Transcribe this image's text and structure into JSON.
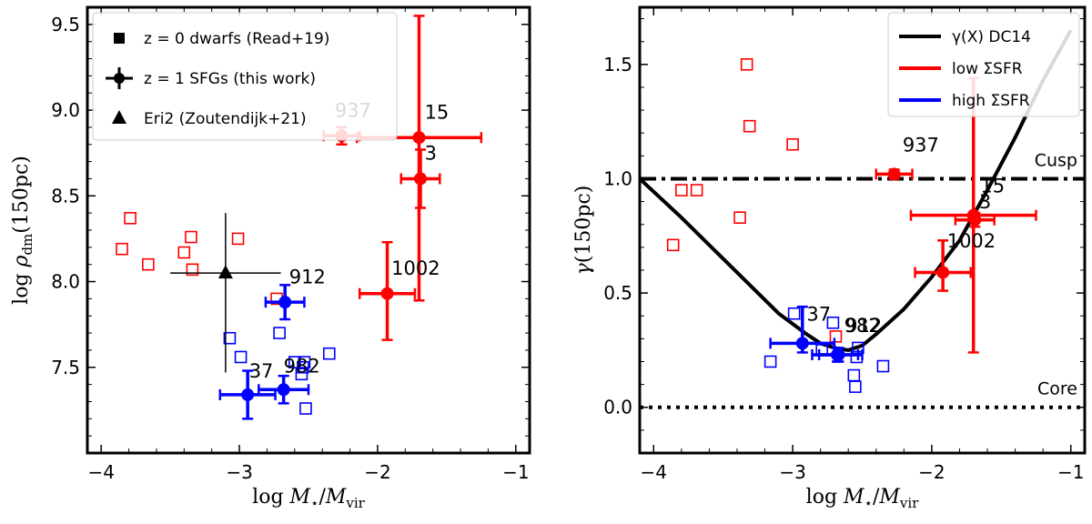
{
  "colors": {
    "red": "#ff0000",
    "blue": "#0000ff",
    "black": "#000000"
  },
  "chart_data": [
    {
      "type": "scatter",
      "title": "",
      "xlabel": "log M⋆/Mvir",
      "ylabel": "log ρdm(150pc)",
      "xlim": [
        -4.1,
        -0.9
      ],
      "ylim": [
        7.0,
        9.6
      ],
      "xticks": [
        -4,
        -3,
        -2,
        -1
      ],
      "xtick_labels": [
        "−4",
        "−3",
        "−2",
        "−1"
      ],
      "yticks": [
        7.5,
        8.0,
        8.5,
        9.0,
        9.5
      ],
      "ytick_labels": [
        "7.5",
        "8.0",
        "8.5",
        "9.0",
        "9.5"
      ],
      "legend": {
        "location": "upper-left",
        "entries": [
          {
            "marker": "square",
            "text": "z = 0 dwarfs (Read+19)"
          },
          {
            "marker": "errorbar",
            "text": "z = 1 SFGs (this work)"
          },
          {
            "marker": "triangle",
            "text": "Eri2 (Zoutendijk+21)"
          }
        ]
      },
      "dwarfs_red": [
        {
          "x": -3.85,
          "y": 8.19
        },
        {
          "x": -3.79,
          "y": 8.37
        },
        {
          "x": -3.66,
          "y": 8.1
        },
        {
          "x": -3.4,
          "y": 8.17
        },
        {
          "x": -3.35,
          "y": 8.26
        },
        {
          "x": -3.34,
          "y": 8.07
        },
        {
          "x": -3.01,
          "y": 8.25
        },
        {
          "x": -2.73,
          "y": 7.9
        }
      ],
      "dwarfs_blue": [
        {
          "x": -3.07,
          "y": 7.67
        },
        {
          "x": -2.99,
          "y": 7.56
        },
        {
          "x": -2.71,
          "y": 7.7
        },
        {
          "x": -2.6,
          "y": 7.53
        },
        {
          "x": -2.55,
          "y": 7.46
        },
        {
          "x": -2.54,
          "y": 7.5
        },
        {
          "x": -2.53,
          "y": 7.53
        },
        {
          "x": -2.52,
          "y": 7.26
        },
        {
          "x": -2.35,
          "y": 7.58
        }
      ],
      "sfgs": [
        {
          "id": "937",
          "color": "red",
          "x": -2.26,
          "y": 8.85,
          "xerr": [
            0.13,
            0.13
          ],
          "yerr": [
            0.05,
            0.05
          ],
          "label": "937",
          "label_dx": -0.05,
          "label_dy": 0.11,
          "label_gray": true
        },
        {
          "id": "15",
          "color": "red",
          "x": -1.7,
          "y": 8.84,
          "xerr": [
            0.45,
            0.45
          ],
          "yerr": [
            0.95,
            0.71
          ],
          "label": "15",
          "label_dx": 0.04,
          "label_dy": 0.11
        },
        {
          "id": "3",
          "color": "red",
          "x": -1.69,
          "y": 8.6,
          "xerr": [
            0.14,
            0.14
          ],
          "yerr": [
            0.17,
            0.17
          ],
          "label": "3",
          "label_dx": 0.03,
          "label_dy": 0.11
        },
        {
          "id": "1002",
          "color": "red",
          "x": -1.93,
          "y": 7.93,
          "xerr": [
            0.2,
            0.2
          ],
          "yerr": [
            0.27,
            0.3
          ],
          "label": "1002",
          "label_dx": 0.03,
          "label_dy": 0.11
        },
        {
          "id": "912",
          "color": "blue",
          "x": -2.67,
          "y": 7.88,
          "xerr": [
            0.14,
            0.14
          ],
          "yerr": [
            0.1,
            0.1
          ],
          "label": "912",
          "label_dx": 0.03,
          "label_dy": 0.11
        },
        {
          "id": "982",
          "color": "blue",
          "x": -2.68,
          "y": 7.37,
          "xerr": [
            0.18,
            0.18
          ],
          "yerr": [
            0.08,
            0.08
          ],
          "label": "982",
          "label_dx": 0.0,
          "label_dy": 0.1
        },
        {
          "id": "37",
          "color": "blue",
          "x": -2.94,
          "y": 7.34,
          "xerr": [
            0.2,
            0.2
          ],
          "yerr": [
            0.14,
            0.14
          ],
          "label": "37",
          "label_dx": 0.01,
          "label_dy": 0.1
        }
      ],
      "eri2": {
        "x": -3.1,
        "y": 8.05,
        "xerr": [
          0.4,
          0.4
        ],
        "yerr": [
          0.58,
          0.35
        ]
      }
    },
    {
      "type": "scatter",
      "title": "",
      "xlabel": "log M⋆/Mvir",
      "ylabel": "γ(150pc)",
      "xlim": [
        -4.1,
        -0.9
      ],
      "ylim": [
        -0.2,
        1.75
      ],
      "xticks": [
        -4,
        -3,
        -2,
        -1
      ],
      "xtick_labels": [
        "−4",
        "−3",
        "−2",
        "−1"
      ],
      "yticks": [
        0.0,
        0.5,
        1.0,
        1.5
      ],
      "ytick_labels": [
        "0.0",
        "0.5",
        "1.0",
        "1.5"
      ],
      "legend": {
        "location": "upper-right",
        "entries": [
          {
            "color": "black",
            "text": "γ(X) DC14"
          },
          {
            "color": "red",
            "text": "low ΣSFR"
          },
          {
            "color": "blue",
            "text": "high ΣSFR"
          }
        ]
      },
      "reference_lines": [
        {
          "label": "Cusp",
          "y": 1.0,
          "style": "dashdot"
        },
        {
          "label": "Core",
          "y": 0.0,
          "style": "dotted"
        }
      ],
      "dc14_curve": {
        "x": [
          -4.1,
          -3.8,
          -3.5,
          -3.3,
          -3.1,
          -2.9,
          -2.8,
          -2.7,
          -2.6,
          -2.5,
          -2.4,
          -2.2,
          -2.0,
          -1.8,
          -1.6,
          -1.4,
          -1.2,
          -1.0
        ],
        "y": [
          1.0,
          0.83,
          0.65,
          0.53,
          0.41,
          0.32,
          0.28,
          0.26,
          0.25,
          0.27,
          0.32,
          0.43,
          0.57,
          0.73,
          0.95,
          1.18,
          1.43,
          1.65
        ]
      },
      "dwarfs_red": [
        {
          "x": -3.86,
          "y": 0.71
        },
        {
          "x": -3.8,
          "y": 0.95
        },
        {
          "x": -3.69,
          "y": 0.95
        },
        {
          "x": -3.38,
          "y": 0.83
        },
        {
          "x": -3.33,
          "y": 1.5
        },
        {
          "x": -3.31,
          "y": 1.23
        },
        {
          "x": -3.0,
          "y": 1.15
        },
        {
          "x": -2.69,
          "y": 0.31
        }
      ],
      "dwarfs_blue": [
        {
          "x": -3.16,
          "y": 0.2
        },
        {
          "x": -2.99,
          "y": 0.41
        },
        {
          "x": -2.71,
          "y": 0.37
        },
        {
          "x": -2.56,
          "y": 0.14
        },
        {
          "x": -2.55,
          "y": 0.09
        },
        {
          "x": -2.54,
          "y": 0.22
        },
        {
          "x": -2.53,
          "y": 0.26
        },
        {
          "x": -2.35,
          "y": 0.18
        },
        {
          "x": -2.79,
          "y": 0.25
        }
      ],
      "sfgs": [
        {
          "id": "937",
          "color": "red",
          "x": -2.27,
          "y": 1.02,
          "xerr": [
            0.13,
            0.13
          ],
          "yerr": [
            0.02,
            0.02
          ],
          "label": "937",
          "label_dx": 0.06,
          "label_dy": 0.1
        },
        {
          "id": "15",
          "color": "red",
          "x": -1.7,
          "y": 0.84,
          "xerr": [
            0.45,
            0.45
          ],
          "yerr": [
            0.6,
            0.6
          ],
          "label": "15",
          "label_dx": 0.05,
          "label_dy": 0.1
        },
        {
          "id": "3",
          "color": "red",
          "x": -1.69,
          "y": 0.82,
          "xerr": [
            0.14,
            0.14
          ],
          "yerr": [
            0.03,
            0.03
          ],
          "label": "3",
          "label_dx": 0.03,
          "label_dy": 0.05
        },
        {
          "id": "1002",
          "color": "red",
          "x": -1.92,
          "y": 0.59,
          "xerr": [
            0.2,
            0.2
          ],
          "yerr": [
            0.08,
            0.14
          ],
          "label": "1002",
          "label_dx": 0.03,
          "label_dy": 0.11
        },
        {
          "id": "912",
          "color": "blue",
          "x": -2.67,
          "y": 0.23,
          "xerr": [
            0.14,
            0.14
          ],
          "yerr": [
            0.03,
            0.03
          ],
          "label": "912",
          "label_dx": 0.05,
          "label_dy": 0.1
        },
        {
          "id": "982",
          "color": "blue",
          "x": -2.68,
          "y": 0.23,
          "xerr": [
            0.18,
            0.18
          ],
          "yerr": [
            0.03,
            0.03
          ],
          "label": "982",
          "label_dx": 0.05,
          "label_dy": 0.1
        },
        {
          "id": "37",
          "color": "blue",
          "x": -2.93,
          "y": 0.28,
          "xerr": [
            0.23,
            0.23
          ],
          "yerr": [
            0.04,
            0.16
          ],
          "label": "37",
          "label_dx": 0.03,
          "label_dy": 0.1
        }
      ]
    }
  ]
}
